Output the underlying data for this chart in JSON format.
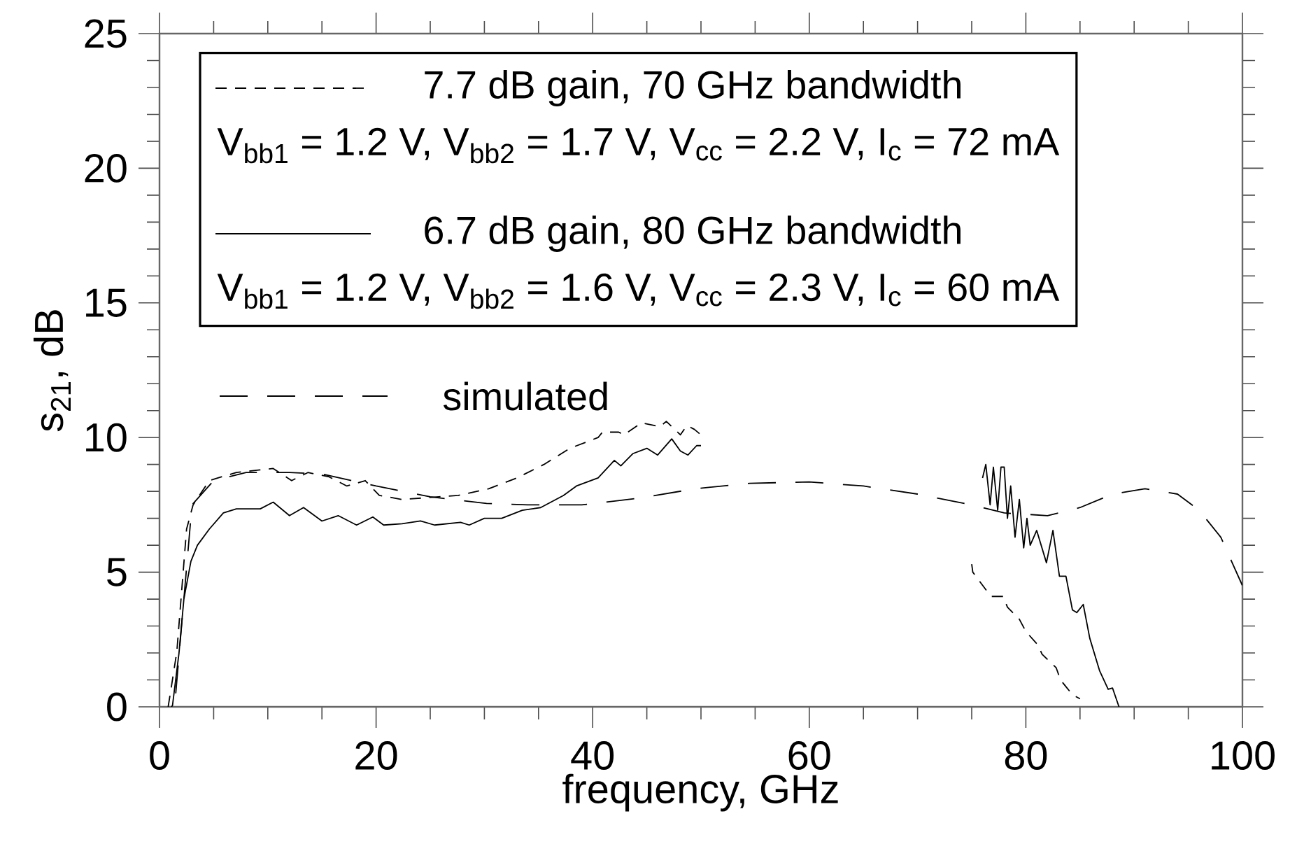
{
  "chart_data": {
    "type": "line",
    "xlabel": "frequency, GHz",
    "ylabel": "s$_{21}$, dB",
    "xlim": [
      0,
      100
    ],
    "xticks": [
      0,
      20,
      40,
      60,
      80,
      100
    ],
    "ylim": [
      0,
      25
    ],
    "yticks": [
      0,
      5,
      10,
      15,
      20,
      25
    ],
    "legend": "top left",
    "annotations": [
      "V$_{bb1}$ = 1.2 V, V$_{bb2}$ = 1.7 V, V$_{cc}$ = 2.2 V, I$_{c}$ = 72 mA",
      "V$_{bb1}$ = 1.2 V, V$_{bb2}$ = 1.6 V, V$_{cc}$ = 2.3 V, I$_{c}$ = 60 mA"
    ],
    "series": [
      {
        "name": "7.7 dB gain, 70 GHz bandwidth",
        "color": "#000000",
        "line_style": "dotted",
        "x": [
          0.8,
          1.0,
          1.6,
          2.5,
          3.1,
          4.6,
          5.4,
          7.1,
          9.3,
          10.5,
          12.2,
          13.7,
          15.6,
          17.3,
          19.0,
          20.3,
          22.4,
          25.8,
          27.6,
          30.4,
          33.0,
          35.5,
          37.9,
          40.5,
          40.9,
          42.4,
          42.9,
          44.5,
          46.2,
          46.8,
          48.1,
          48.7,
          49.4,
          50.0,
          62.0,
          75.0,
          75.1,
          76.4,
          76.8,
          77.9,
          78.3,
          79.4,
          80.0,
          81.1,
          81.5,
          82.8,
          83.2,
          84.3,
          85.0
        ],
        "values": [
          0,
          0.5,
          2.05,
          6.6,
          7.5,
          8.4,
          8.5,
          8.7,
          8.8,
          8.85,
          8.4,
          8.7,
          8.55,
          8.2,
          8.4,
          7.85,
          7.7,
          7.8,
          7.85,
          8.1,
          8.5,
          9.0,
          9.6,
          10.0,
          10.2,
          10.2,
          10.1,
          10.55,
          10.4,
          10.6,
          10.1,
          10.45,
          10.3,
          10.1,
          null,
          5.3,
          5.0,
          4.3,
          4.1,
          4.1,
          3.7,
          3.25,
          2.8,
          2.3,
          1.95,
          1.45,
          1.0,
          0.45,
          0.3
        ]
      },
      {
        "name": "6.7 dB gain, 80 GHz bandwidth",
        "color": "#000000",
        "line_style": "solid",
        "x": [
          1.1,
          1.2,
          1.8,
          2.25,
          2.9,
          3.5,
          4.6,
          5.9,
          7.1,
          9.3,
          10.5,
          12.0,
          13.3,
          15.0,
          16.5,
          18.2,
          19.7,
          20.7,
          22.4,
          24.1,
          25.4,
          27.8,
          28.6,
          30.0,
          31.6,
          33.5,
          35.2,
          37.3,
          38.5,
          40.5,
          42.0,
          42.6,
          43.7,
          45.0,
          46.0,
          47.3,
          48.1,
          48.8,
          49.6,
          50.0,
          62.0,
          76.0,
          76.3,
          76.7,
          77.0,
          77.4,
          77.7,
          78.0,
          78.3,
          78.6,
          79.0,
          79.4,
          79.8,
          80.1,
          80.4,
          81.0,
          81.9,
          82.5,
          83.1,
          83.7,
          84.3,
          84.7,
          85.3,
          85.9,
          86.8,
          87.6,
          88.0,
          88.6
        ],
        "values": [
          0,
          0.05,
          2.0,
          4.0,
          5.4,
          6.0,
          6.6,
          7.2,
          7.35,
          7.35,
          7.6,
          7.1,
          7.4,
          6.9,
          7.1,
          6.75,
          7.05,
          6.75,
          6.8,
          6.9,
          6.75,
          6.85,
          6.75,
          7.0,
          7.0,
          7.3,
          7.4,
          7.85,
          8.2,
          8.5,
          9.15,
          8.95,
          9.4,
          9.6,
          9.35,
          9.95,
          9.5,
          9.35,
          9.7,
          9.7,
          null,
          8.5,
          9.0,
          7.5,
          8.9,
          7.3,
          8.9,
          8.9,
          7.0,
          8.2,
          6.3,
          7.7,
          5.9,
          7.0,
          6.0,
          6.55,
          5.35,
          6.55,
          4.85,
          4.85,
          3.6,
          3.5,
          3.8,
          2.55,
          1.35,
          0.65,
          0.7,
          0
        ]
      },
      {
        "name": "simulated",
        "color": "#000000",
        "line_style": "dashed",
        "x": [
          1.5,
          3,
          5,
          8,
          12,
          15,
          20,
          25,
          30.2,
          34,
          39,
          44.3,
          49.5,
          54.5,
          60,
          65,
          70,
          75,
          78,
          82,
          85,
          88,
          91,
          94,
          96,
          98,
          100
        ],
        "values": [
          0.5,
          7.5,
          8.4,
          8.7,
          8.7,
          8.65,
          8.2,
          7.8,
          7.55,
          7.5,
          7.5,
          7.75,
          8.1,
          8.3,
          8.35,
          8.2,
          7.9,
          7.5,
          7.2,
          7.1,
          7.4,
          7.9,
          8.1,
          7.9,
          7.3,
          6.3,
          4.5
        ]
      }
    ]
  }
}
